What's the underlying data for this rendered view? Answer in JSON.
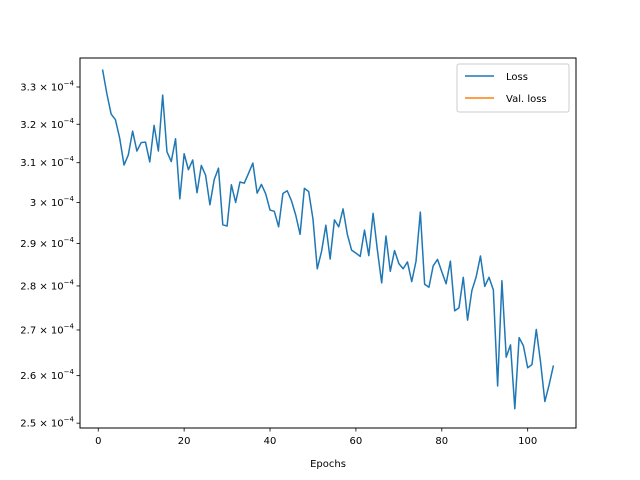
{
  "chart_data": {
    "type": "line",
    "title": "",
    "xlabel": "Epochs",
    "ylabel": "",
    "yscale": "log",
    "xlim": [
      -4.25,
      111.25
    ],
    "ylim": [
      0.000249,
      0.000338
    ],
    "grid": false,
    "legend_position": "top-right",
    "x_ticks": [
      {
        "value": 0,
        "label": "0"
      },
      {
        "value": 20,
        "label": "20"
      },
      {
        "value": 40,
        "label": "40"
      },
      {
        "value": 60,
        "label": "60"
      },
      {
        "value": 80,
        "label": "80"
      },
      {
        "value": 100,
        "label": "100"
      }
    ],
    "y_ticks": [
      {
        "value": 0.00025,
        "mantissa": "2.5",
        "base": "10",
        "exp": "−4"
      },
      {
        "value": 0.00026,
        "mantissa": "2.6",
        "base": "10",
        "exp": "−4"
      },
      {
        "value": 0.00027,
        "mantissa": "2.7",
        "base": "10",
        "exp": "−4"
      },
      {
        "value": 0.00028,
        "mantissa": "2.8",
        "base": "10",
        "exp": "−4"
      },
      {
        "value": 0.00029,
        "mantissa": "2.9",
        "base": "10",
        "exp": "−4"
      },
      {
        "value": 0.0003,
        "mantissa": "3",
        "base": "10",
        "exp": "−4"
      },
      {
        "value": 0.00031,
        "mantissa": "3.1",
        "base": "10",
        "exp": "−4"
      },
      {
        "value": 0.00032,
        "mantissa": "3.2",
        "base": "10",
        "exp": "−4"
      },
      {
        "value": 0.00033,
        "mantissa": "3.3",
        "base": "10",
        "exp": "−4"
      }
    ],
    "series": [
      {
        "name": "Loss",
        "color": "#1f77b4",
        "x": [
          1,
          2,
          3,
          4,
          5,
          6,
          7,
          8,
          9,
          10,
          11,
          12,
          13,
          14,
          15,
          16,
          17,
          18,
          19,
          20,
          21,
          22,
          23,
          24,
          25,
          26,
          27,
          28,
          29,
          30,
          31,
          32,
          33,
          34,
          35,
          36,
          37,
          38,
          39,
          40,
          41,
          42,
          43,
          44,
          45,
          46,
          47,
          48,
          49,
          50,
          51,
          52,
          53,
          54,
          55,
          56,
          57,
          58,
          59,
          60,
          61,
          62,
          63,
          64,
          65,
          66,
          67,
          68,
          69,
          70,
          71,
          72,
          73,
          74,
          75,
          76,
          77,
          78,
          79,
          80,
          81,
          82,
          83,
          84,
          85,
          86,
          87,
          88,
          89,
          90,
          91,
          92,
          93,
          94,
          95,
          96,
          97,
          98,
          99,
          100,
          101,
          102,
          103,
          104,
          105,
          106
        ],
        "values": [
          0.0003348,
          0.0003282,
          0.0003227,
          0.0003212,
          0.0003163,
          0.0003094,
          0.000312,
          0.0003182,
          0.000313,
          0.0003152,
          0.0003153,
          0.0003102,
          0.0003197,
          0.000313,
          0.0003278,
          0.0003128,
          0.0003103,
          0.0003162,
          0.0003009,
          0.0003123,
          0.0003082,
          0.0003107,
          0.0003024,
          0.0003093,
          0.0003068,
          0.0002994,
          0.0003057,
          0.0003086,
          0.0002945,
          0.0002942,
          0.0003044,
          0.0003,
          0.0003051,
          0.0003048,
          0.0003073,
          0.0003099,
          0.0003023,
          0.0003045,
          0.0003021,
          0.0002981,
          0.0002978,
          0.000294,
          0.0003022,
          0.0003029,
          0.0003004,
          0.0002968,
          0.0002922,
          0.0003035,
          0.0003027,
          0.0002959,
          0.000284,
          0.0002881,
          0.0002944,
          0.0002863,
          0.0002957,
          0.000294,
          0.0002984,
          0.0002922,
          0.0002884,
          0.0002877,
          0.0002869,
          0.0002932,
          0.0002871,
          0.0002973,
          0.0002884,
          0.0002807,
          0.0002918,
          0.0002834,
          0.0002883,
          0.0002852,
          0.000284,
          0.0002856,
          0.000281,
          0.0002858,
          0.0002976,
          0.0002804,
          0.0002797,
          0.0002847,
          0.0002862,
          0.0002833,
          0.0002805,
          0.0002858,
          0.0002743,
          0.000275,
          0.000282,
          0.0002722,
          0.0002789,
          0.0002821,
          0.000287,
          0.0002799,
          0.000282,
          0.0002791,
          0.0002578,
          0.0002812,
          0.000264,
          0.0002667,
          0.000253,
          0.0002683,
          0.0002665,
          0.0002617,
          0.0002624,
          0.0002701,
          0.0002629,
          0.0002545,
          0.0002581,
          0.0002622
        ]
      },
      {
        "name": "Val. loss",
        "color": "#ff7f0e",
        "x": [],
        "values": []
      }
    ]
  }
}
